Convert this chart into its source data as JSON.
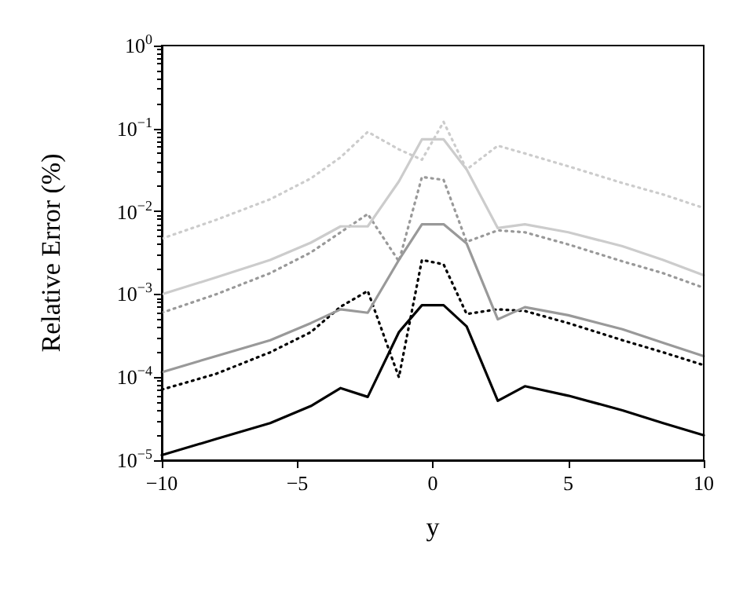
{
  "chart_data": {
    "type": "line",
    "xlabel": "y",
    "ylabel": "Relative Error (%)",
    "log": "y",
    "marker": "none",
    "x": [
      -10,
      -8,
      -6,
      -4.5,
      -3.4,
      -2.4,
      -1.25,
      -0.4,
      0.4,
      1.25,
      2.4,
      3.4,
      5,
      7,
      8.5,
      10
    ],
    "xlim": [
      -10,
      10
    ],
    "xticks": [
      {
        "value": -10,
        "label": "−10"
      },
      {
        "value": -5,
        "label": "−5"
      },
      0,
      5,
      10
    ],
    "ylim": [
      1e-05,
      1
    ],
    "yticks": [
      {
        "value": 1e-05,
        "label": "10$^{−5}$"
      },
      {
        "value": 0.0001,
        "label": "10$^{−4}$"
      },
      {
        "value": 0.001,
        "label": "10$^{−3}$"
      },
      {
        "value": 0.01,
        "label": "10$^{−2}$"
      },
      {
        "value": 0.1,
        "label": "10$^{−1}$"
      },
      {
        "value": 1,
        "label": "10$^{0}$"
      }
    ],
    "series": [
      {
        "color": "#000000",
        "line_style": "solid",
        "values": [
          1.15e-05,
          1.8e-05,
          2.8e-05,
          4.5e-05,
          7.4e-05,
          5.8e-05,
          0.00035,
          0.00074,
          0.00074,
          0.00041,
          5.2e-05,
          7.8e-05,
          6e-05,
          4e-05,
          2.8e-05,
          2e-05
        ]
      },
      {
        "color": "#000000",
        "line_style": "dotted",
        "values": [
          7.1e-05,
          0.00011,
          0.0002,
          0.00035,
          0.00071,
          0.0011,
          0.0001,
          0.0026,
          0.0023,
          0.00058,
          0.00066,
          0.00063,
          0.00045,
          0.00028,
          0.0002,
          0.00014
        ]
      },
      {
        "color": "#999999",
        "line_style": "solid",
        "values": [
          0.000115,
          0.00018,
          0.00028,
          0.00045,
          0.00066,
          0.0006,
          0.0026,
          0.007,
          0.007,
          0.0041,
          0.0005,
          0.0007,
          0.00056,
          0.00038,
          0.00026,
          0.00018
        ]
      },
      {
        "color": "#999999",
        "line_style": "dotted",
        "values": [
          0.0006,
          0.001,
          0.0018,
          0.0032,
          0.0056,
          0.0093,
          0.0025,
          0.026,
          0.024,
          0.0043,
          0.0059,
          0.0056,
          0.004,
          0.0025,
          0.0018,
          0.0012
        ]
      },
      {
        "color": "#cccccc",
        "line_style": "solid",
        "values": [
          0.001,
          0.0016,
          0.0026,
          0.0042,
          0.0066,
          0.0066,
          0.023,
          0.074,
          0.074,
          0.032,
          0.0063,
          0.007,
          0.0056,
          0.0038,
          0.0026,
          0.0017
        ]
      },
      {
        "color": "#cccccc",
        "line_style": "dotted",
        "values": [
          0.0047,
          0.0079,
          0.014,
          0.025,
          0.045,
          0.091,
          0.056,
          0.042,
          0.12,
          0.032,
          0.062,
          0.05,
          0.035,
          0.022,
          0.016,
          0.011
        ]
      }
    ]
  }
}
